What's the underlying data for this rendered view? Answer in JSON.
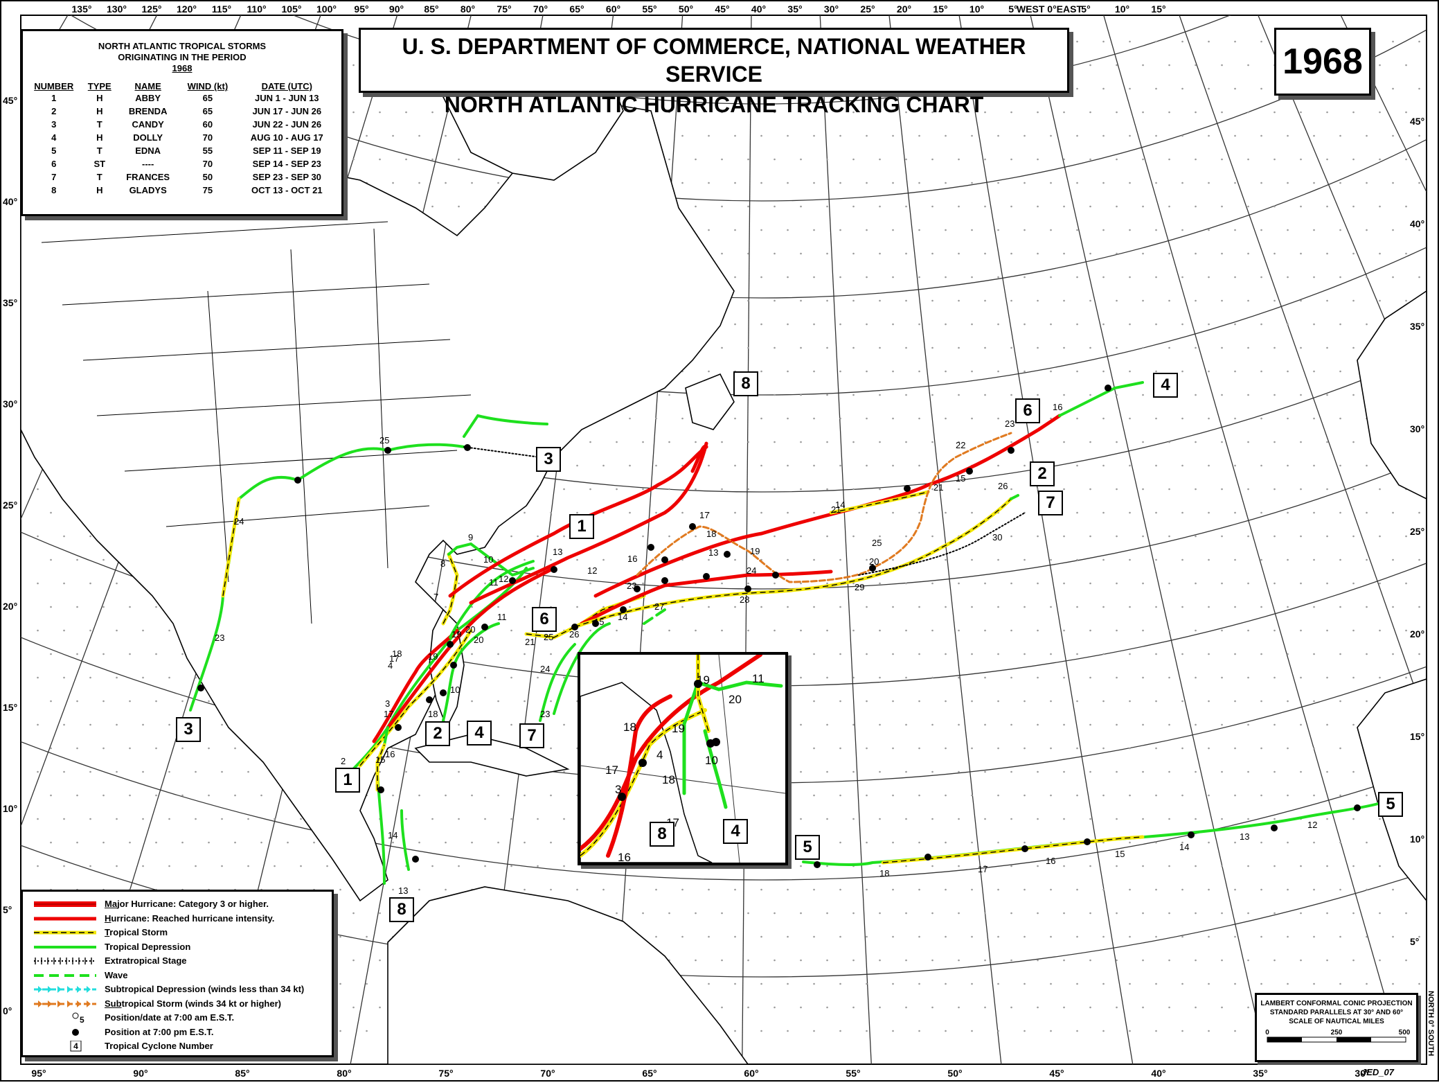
{
  "year": "1968",
  "title": {
    "line1": "U. S. DEPARTMENT OF COMMERCE, NATIONAL WEATHER SERVICE",
    "line2": "NORTH ATLANTIC HURRICANE TRACKING CHART"
  },
  "storm_table": {
    "title_line1": "NORTH ATLANTIC TROPICAL STORMS",
    "title_line2": "ORIGINATING IN THE PERIOD",
    "title_year": "1968",
    "headers": [
      "NUMBER",
      "TYPE",
      "NAME",
      "WIND (kt)",
      "DATE (UTC)"
    ],
    "rows": [
      [
        "1",
        "H",
        "ABBY",
        "65",
        "JUN  1 - JUN 13"
      ],
      [
        "2",
        "H",
        "BRENDA",
        "65",
        "JUN 17 - JUN 26"
      ],
      [
        "3",
        "T",
        "CANDY",
        "60",
        "JUN 22 - JUN 26"
      ],
      [
        "4",
        "H",
        "DOLLY",
        "70",
        "AUG 10 - AUG 17"
      ],
      [
        "5",
        "T",
        "EDNA",
        "55",
        "SEP 11 - SEP 19"
      ],
      [
        "6",
        "ST",
        "----",
        "70",
        "SEP 14 - SEP 23"
      ],
      [
        "7",
        "T",
        "FRANCES",
        "50",
        "SEP 23 - SEP 30"
      ],
      [
        "8",
        "H",
        "GLADYS",
        "75",
        "OCT 13 - OCT 21"
      ]
    ]
  },
  "legend": [
    {
      "style": "major",
      "prefix": "Ma",
      "rest": "jor Hurricane: Category 3 or higher.",
      "ul": "Ma"
    },
    {
      "style": "hurricane",
      "prefix": "H",
      "rest": "urricane: Reached hurricane intensity.",
      "ul": "H"
    },
    {
      "style": "ts",
      "prefix": "T",
      "rest": "ropical Storm",
      "ul": "T"
    },
    {
      "style": "td",
      "prefix": "",
      "rest": "Tropical Depression",
      "ul": ""
    },
    {
      "style": "et",
      "prefix": "",
      "rest": "Extratropical Stage",
      "ul": ""
    },
    {
      "style": "wave",
      "prefix": "",
      "rest": "Wave",
      "ul": ""
    },
    {
      "style": "sd",
      "prefix": "",
      "rest": "Subtropical Depression (winds less than 34 kt)",
      "ul": ""
    },
    {
      "style": "ss",
      "prefix": "Sub",
      "rest": "tropical Storm (winds 34 kt or higher)",
      "ul": "Sub"
    },
    {
      "style": "am",
      "prefix": "",
      "rest": "Position/date at 7:00 am E.S.T.",
      "ul": ""
    },
    {
      "style": "pm",
      "prefix": "",
      "rest": "Position at 7:00 pm E.S.T.",
      "ul": ""
    },
    {
      "style": "num",
      "prefix": "",
      "rest": "Tropical Cyclone Number",
      "ul": ""
    }
  ],
  "legend_am_sample": "5",
  "legend_num_sample": "4",
  "projection": {
    "line1": "LAMBERT CONFORMAL CONIC PROJECTION",
    "line2": "STANDARD PARALLELS AT 30° AND 60°",
    "line3": "SCALE OF NAUTICAL MILES",
    "scale_0": "0",
    "scale_250": "250",
    "scale_500": "500"
  },
  "credit": "JED_07",
  "top_axis": [
    "135°",
    "130°",
    "125°",
    "120°",
    "115°",
    "110°",
    "105°",
    "100°",
    "95°",
    "90°",
    "85°",
    "80°",
    "75°",
    "70°",
    "65°",
    "60°",
    "55°",
    "50°",
    "45°",
    "40°",
    "35°",
    "30°",
    "25°",
    "20°",
    "15°",
    "10°",
    "5°",
    "WEST 0°EAST",
    "5°",
    "10°",
    "15°"
  ],
  "bottom_axis": [
    "95°",
    "90°",
    "85°",
    "80°",
    "75°",
    "70°",
    "65°",
    "60°",
    "55°",
    "50°",
    "45°",
    "40°",
    "35°",
    "30°"
  ],
  "left_axis": [
    "45°",
    "40°",
    "35°",
    "30°",
    "25°",
    "20°",
    "15°",
    "10°",
    "5°",
    "0°"
  ],
  "right_axis": [
    "45°",
    "40°",
    "35°",
    "30°",
    "25°",
    "20°",
    "15°",
    "10°",
    "5°"
  ],
  "right_corner": "NORTH 0° SOUTH",
  "cyclone_labels": [
    "1",
    "1",
    "2",
    "2",
    "3",
    "3",
    "4",
    "4",
    "4",
    "5",
    "5",
    "6",
    "6",
    "7",
    "7",
    "8",
    "8",
    "8"
  ],
  "date_labels": [
    "25",
    "24",
    "23",
    "17",
    "18",
    "4",
    "3",
    "19",
    "17",
    "18",
    "16",
    "15",
    "14",
    "13",
    "2",
    "9",
    "8",
    "7",
    "10",
    "11",
    "12",
    "13",
    "20",
    "19",
    "10",
    "11",
    "20",
    "21",
    "25",
    "26",
    "15",
    "14",
    "24",
    "23",
    "27",
    "16",
    "23",
    "17",
    "18",
    "13",
    "19",
    "12",
    "24",
    "28",
    "21",
    "14",
    "29",
    "20",
    "22",
    "21",
    "15",
    "23",
    "25",
    "26",
    "30",
    "16",
    "12",
    "13",
    "14",
    "15",
    "16",
    "17",
    "18"
  ],
  "inset_labels": [
    "19",
    "11",
    "20",
    "18",
    "19",
    "4",
    "17",
    "3",
    "10",
    "18",
    "17",
    "16"
  ]
}
